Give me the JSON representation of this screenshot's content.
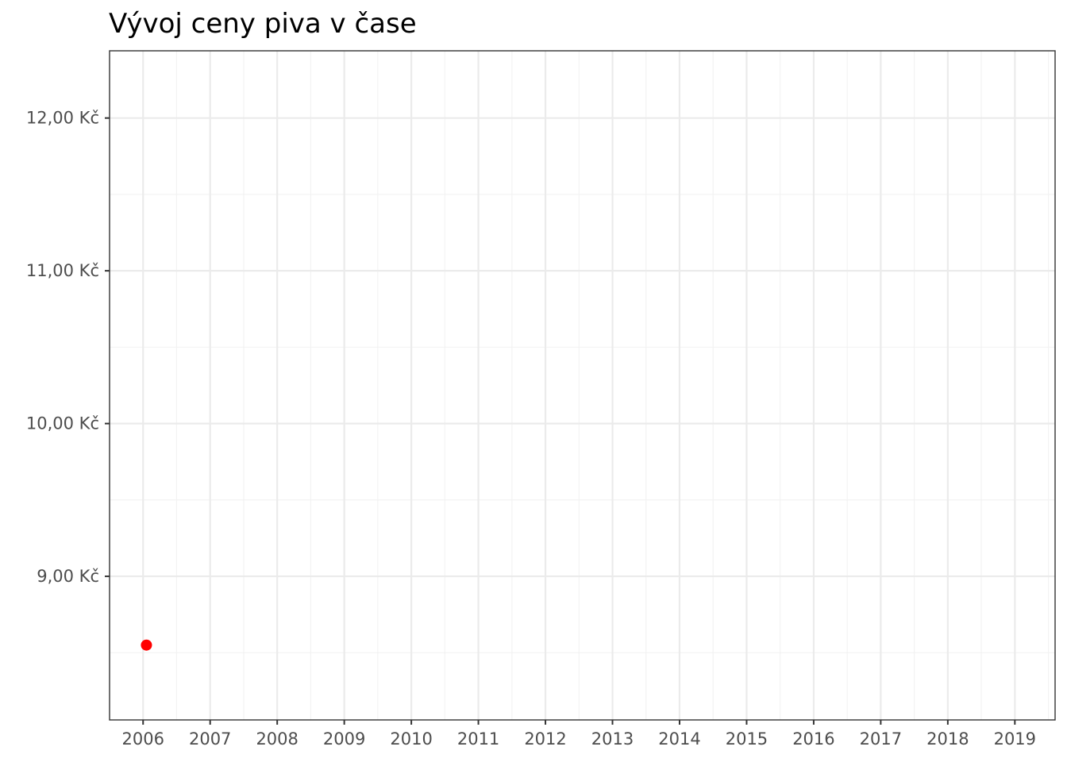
{
  "chart_data": {
    "type": "scatter",
    "title": "Vývoj ceny piva v čase",
    "xlabel": "",
    "ylabel": "",
    "x_tick_labels": [
      "2006",
      "2007",
      "2008",
      "2009",
      "2010",
      "2011",
      "2012",
      "2013",
      "2014",
      "2015",
      "2016",
      "2017",
      "2018",
      "2019"
    ],
    "y_tick_labels": [
      "9,00 Kč",
      "10,00 Kč",
      "11,00 Kč",
      "12,00 Kč"
    ],
    "x_ticks": [
      2006,
      2007,
      2008,
      2009,
      2010,
      2011,
      2012,
      2013,
      2014,
      2015,
      2016,
      2017,
      2018,
      2019
    ],
    "y_ticks": [
      9,
      10,
      11,
      12
    ],
    "xlim": [
      2005.5,
      2019.6
    ],
    "ylim": [
      8.06,
      12.44
    ],
    "grid": true,
    "points": [
      {
        "x": 2006.05,
        "y": 8.55
      }
    ],
    "point_color": "#ff0000"
  }
}
